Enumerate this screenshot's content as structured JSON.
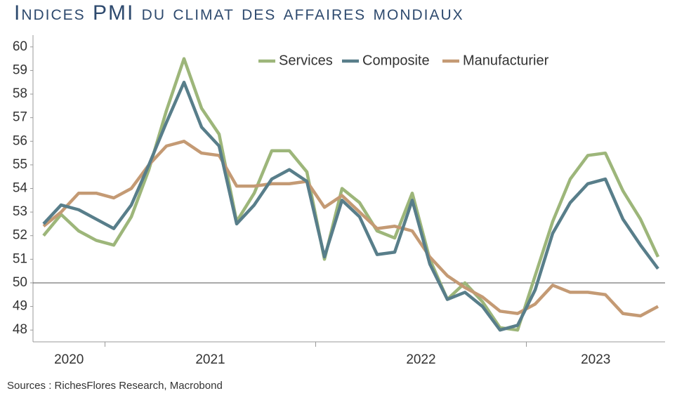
{
  "chart_data": {
    "type": "line",
    "title": "Indices PMI du climat des affaires mondiaux",
    "source": "Sources : RichesFlores Research, Macrobond",
    "categories": [
      null,
      null,
      null,
      null,
      null,
      null,
      null,
      null,
      null,
      null,
      null,
      null,
      null,
      null,
      null,
      null,
      null,
      null,
      null,
      null,
      null,
      null,
      null,
      null,
      null,
      null,
      null,
      null,
      null,
      null,
      null,
      null,
      null,
      null,
      null,
      null
    ],
    "year_labels": [
      "2020",
      "2021",
      "2022",
      "2023"
    ],
    "series": [
      {
        "name": "Services",
        "color": "#9db67a",
        "values": [
          52.0,
          52.9,
          52.2,
          51.8,
          51.6,
          52.8,
          54.8,
          57.3,
          59.5,
          57.4,
          56.3,
          52.6,
          53.8,
          55.6,
          55.6,
          54.7,
          51.0,
          54.0,
          53.4,
          52.2,
          51.9,
          53.8,
          51.0,
          49.3,
          50.0,
          49.2,
          48.1,
          48.0,
          50.3,
          52.6,
          54.4,
          55.4,
          55.5,
          53.9,
          52.7,
          51.1
        ]
      },
      {
        "name": "Composite",
        "color": "#587e8a",
        "values": [
          52.5,
          53.3,
          53.1,
          52.7,
          52.3,
          53.3,
          55.0,
          56.8,
          58.5,
          56.6,
          55.8,
          52.5,
          53.3,
          54.4,
          54.8,
          54.3,
          51.1,
          53.5,
          52.8,
          51.2,
          51.3,
          53.5,
          50.8,
          49.3,
          49.6,
          49.0,
          48.0,
          48.2,
          49.7,
          52.1,
          53.4,
          54.2,
          54.4,
          52.7,
          51.6,
          50.6
        ]
      },
      {
        "name": "Manufacturier",
        "color": "#c49a74",
        "values": [
          52.4,
          53.0,
          53.8,
          53.8,
          53.6,
          54.0,
          55.0,
          55.8,
          56.0,
          55.5,
          55.4,
          54.1,
          54.1,
          54.2,
          54.2,
          54.3,
          53.2,
          53.7,
          53.0,
          52.3,
          52.4,
          52.2,
          51.1,
          50.3,
          49.8,
          49.4,
          48.8,
          48.7,
          49.1,
          49.9,
          49.6,
          49.6,
          49.5,
          48.7,
          48.6,
          49.0
        ]
      }
    ],
    "ylim": [
      47.5,
      60.5
    ],
    "yticks": [
      48,
      49,
      50,
      51,
      52,
      53,
      54,
      55,
      56,
      57,
      58,
      59,
      60
    ],
    "reference_line": 50,
    "legend": "top"
  }
}
